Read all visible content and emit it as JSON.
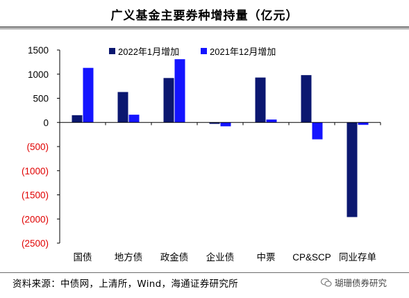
{
  "title": "广义基金主要券种增持量（亿元）",
  "source": "资料来源：中债网，上清所，Wind，海通证券研究所",
  "watermark": "瑚珊债券研究",
  "colors": {
    "series1": "#0b1770",
    "series2": "#1414ff",
    "negative_tick": "#e00000"
  },
  "chart_data": {
    "type": "bar",
    "title": "广义基金主要券种增持量（亿元）",
    "xlabel": "",
    "ylabel": "",
    "categories": [
      "国债",
      "地方债",
      "政金债",
      "企业债",
      "中票",
      "CP&SCP",
      "同业存单"
    ],
    "series": [
      {
        "name": "2022年1月增加",
        "values": [
          150,
          630,
          920,
          -30,
          930,
          980,
          -1960
        ]
      },
      {
        "name": "2021年12月增加",
        "values": [
          1130,
          160,
          1310,
          -80,
          60,
          -350,
          -50
        ]
      }
    ],
    "ylim": [
      -2500,
      1500
    ],
    "yticks": [
      1500,
      1000,
      500,
      0,
      -500,
      -1000,
      -1500,
      -2000,
      -2500
    ],
    "ytick_labels": [
      "1500",
      "1000",
      "500",
      "0",
      "(500)",
      "(1000)",
      "(1500)",
      "(2000)",
      "(2500)"
    ],
    "legend_position": "top",
    "grid": false
  }
}
